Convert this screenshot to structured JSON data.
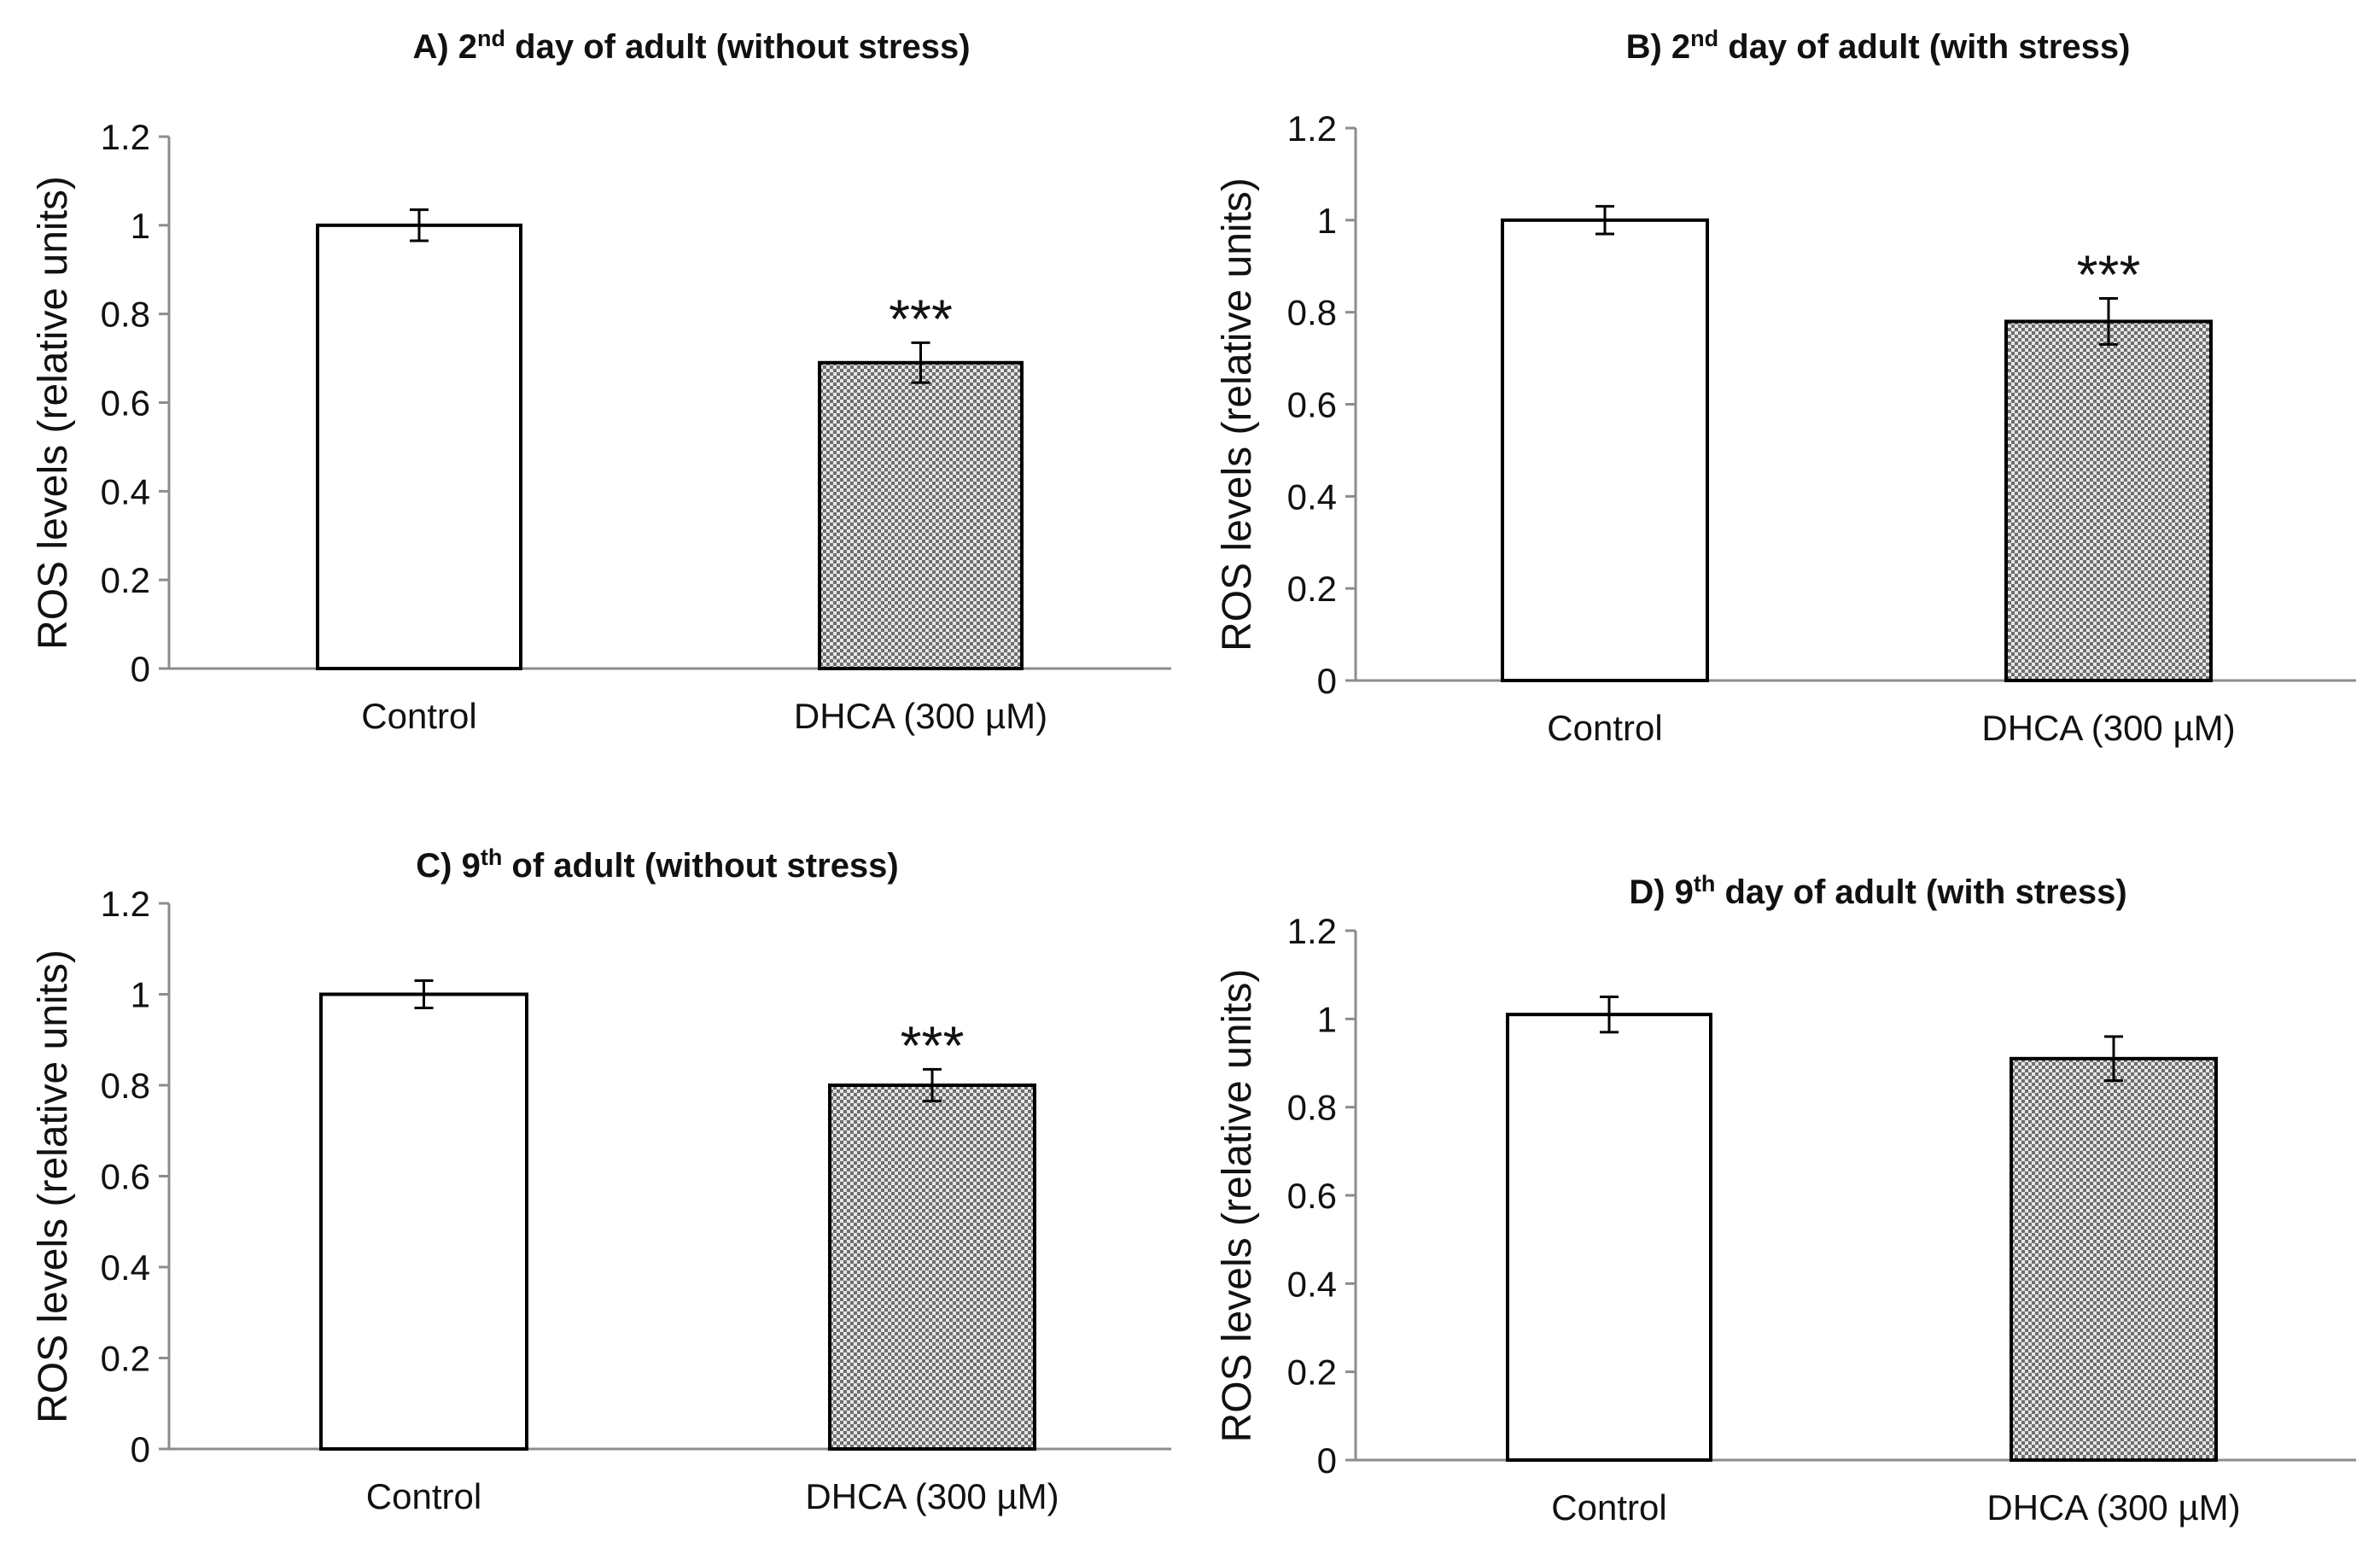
{
  "chart_data": [
    {
      "panel": "A",
      "type": "bar",
      "title": {
        "prefix": "A) 2",
        "sup": "nd",
        "suffix": " day of adult (without stress)"
      },
      "ylabel": "ROS levels (relative units)",
      "xlabel": "",
      "ylim": [
        0,
        1.2
      ],
      "yticks": [
        "0",
        "0.2",
        "0.4",
        "0.6",
        "0.8",
        "1",
        "1.2"
      ],
      "categories": [
        "Control",
        "DHCA  (300  µM)"
      ],
      "values": [
        1.0,
        0.69
      ],
      "errors": [
        0.035,
        0.045
      ],
      "fills": [
        "white",
        "checker"
      ],
      "significance": [
        "",
        "***"
      ]
    },
    {
      "panel": "B",
      "type": "bar",
      "title": {
        "prefix": "B) 2",
        "sup": "nd",
        "suffix": " day of adult (with stress)"
      },
      "ylabel": "ROS levels (relative units)",
      "xlabel": "",
      "ylim": [
        0,
        1.2
      ],
      "yticks": [
        "0",
        "0.2",
        "0.4",
        "0.6",
        "0.8",
        "1",
        "1.2"
      ],
      "categories": [
        "Control",
        "DHCA  (300  µM)"
      ],
      "values": [
        1.0,
        0.78
      ],
      "errors": [
        0.03,
        0.05
      ],
      "fills": [
        "white",
        "checker"
      ],
      "significance": [
        "",
        "***"
      ]
    },
    {
      "panel": "C",
      "type": "bar",
      "title": {
        "prefix": "C) 9",
        "sup": "th",
        "suffix": " of adult (without stress)"
      },
      "ylabel": "ROS levels (relative units)",
      "xlabel": "",
      "ylim": [
        0,
        1.2
      ],
      "yticks": [
        "0",
        "0.2",
        "0.4",
        "0.6",
        "0.8",
        "1",
        "1.2"
      ],
      "categories": [
        "Control",
        "DHCA  (300  µM)"
      ],
      "values": [
        1.0,
        0.8
      ],
      "errors": [
        0.03,
        0.035
      ],
      "fills": [
        "white",
        "checker"
      ],
      "significance": [
        "",
        "***"
      ]
    },
    {
      "panel": "D",
      "type": "bar",
      "title": {
        "prefix": "D) 9",
        "sup": "th",
        "suffix": " day of adult (with stress)"
      },
      "ylabel": "ROS levels (relative units)",
      "xlabel": "",
      "ylim": [
        0,
        1.2
      ],
      "yticks": [
        "0",
        "0.2",
        "0.4",
        "0.6",
        "0.8",
        "1",
        "1.2"
      ],
      "categories": [
        "Control",
        "DHCA  (300  µM)"
      ],
      "values": [
        1.01,
        0.91
      ],
      "errors": [
        0.04,
        0.05
      ],
      "fills": [
        "white",
        "checker"
      ],
      "significance": [
        "",
        ""
      ]
    }
  ],
  "colors": {
    "bar_stroke": "#000000",
    "axis": "#8c8c8c",
    "checker_dark": "#6e6e6e",
    "checker_light": "#e6e6e6",
    "text": "#111111"
  }
}
